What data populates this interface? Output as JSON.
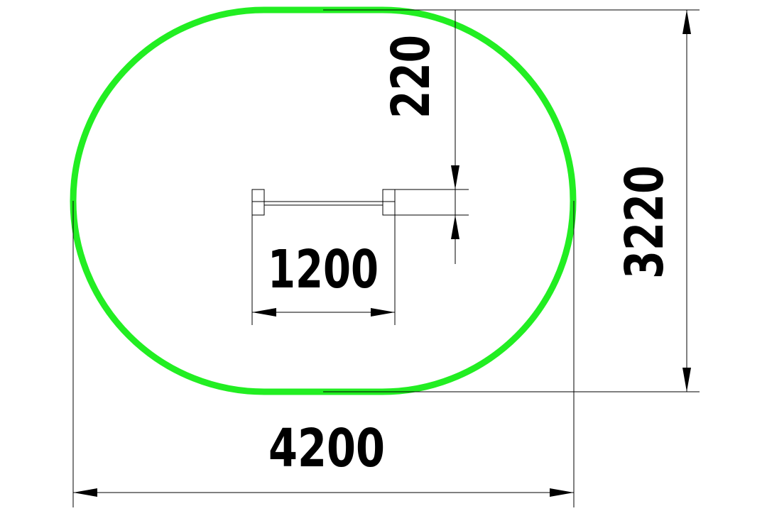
{
  "dimensions": {
    "overall_length": "4200",
    "overall_width": "3220",
    "element_length": "1200",
    "element_offset": "220"
  },
  "colors": {
    "outline": "#22ee22",
    "lines": "#000000",
    "background": "#ffffff"
  }
}
